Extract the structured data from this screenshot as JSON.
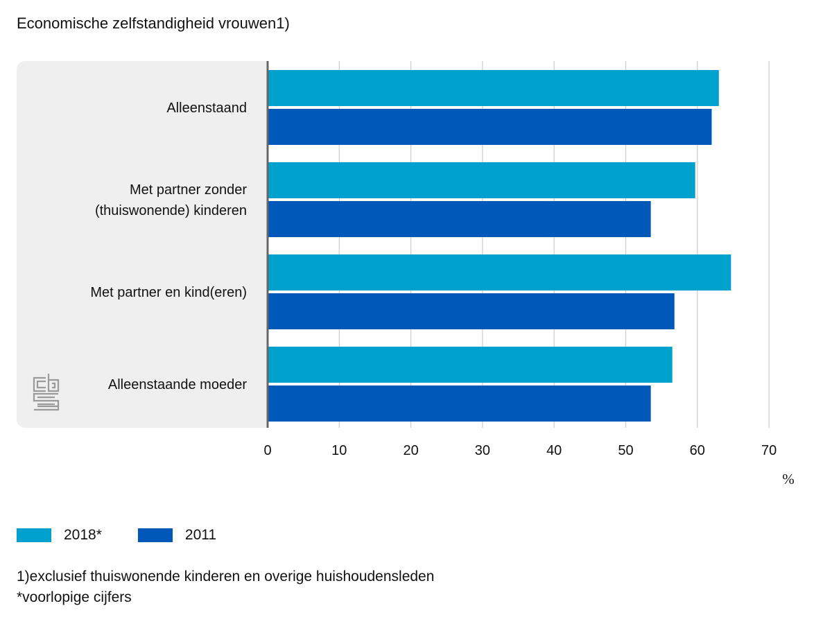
{
  "chart_data": {
    "type": "bar",
    "orientation": "horizontal",
    "title": "Economische zelfstandigheid vrouwen1)",
    "categories": [
      [
        "Alleenstaand"
      ],
      [
        "Met partner zonder",
        "(thuiswonende) kinderen"
      ],
      [
        "Met partner en kind(eren)"
      ],
      [
        "Alleenstaande moeder"
      ]
    ],
    "series": [
      {
        "name": "2018*",
        "color": "#00A1CD",
        "values": [
          63,
          59.7,
          64.7,
          56.5
        ]
      },
      {
        "name": "2011",
        "color": "#0058B8",
        "values": [
          62,
          53.5,
          56.8,
          53.5
        ]
      }
    ],
    "xlim": [
      0,
      70
    ],
    "xticks": [
      0,
      10,
      20,
      30,
      40,
      50,
      60,
      70
    ],
    "xlabel": "%",
    "grid": true,
    "legend_position": "bottom-left"
  },
  "footnotes": [
    "1)exclusief thuiswonende kinderen en overige huishoudensleden",
    "*voorlopige cijfers"
  ],
  "logo": "cbs",
  "colors": {
    "label_panel": "#EFEFEF",
    "grid": "#CCCCCC",
    "axis": "#666666",
    "logo": "#9A9A9A"
  }
}
